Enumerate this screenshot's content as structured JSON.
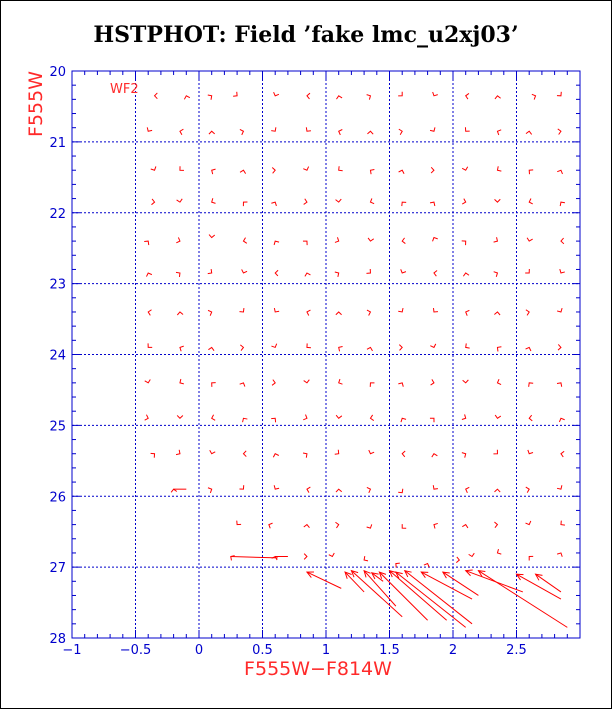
{
  "title": "HSTPHOT: Field ’fake lmc_u2xj03’",
  "colors": {
    "axis": "#0000cc",
    "grid": "#0000cc",
    "marks": "#ff0000",
    "labels": "#ff2a2a"
  },
  "chart_data": {
    "type": "scatter",
    "title": "HSTPHOT: Field ’fake lmc_u2xj03’",
    "xlabel": "F555W−F814W",
    "ylabel": "F555W",
    "annotation": "WF2",
    "xlim": [
      -1,
      3
    ],
    "ylim": [
      28,
      20
    ],
    "y_inverted": true,
    "grid": true,
    "x_ticks": [
      -1,
      -0.5,
      0,
      0.5,
      1,
      1.5,
      2,
      2.5
    ],
    "x_tick_labels": [
      "−1",
      "−0.5",
      "0",
      "0.5",
      "1",
      "1.5",
      "2",
      "2.5"
    ],
    "y_ticks": [
      20,
      21,
      22,
      23,
      24,
      25,
      26,
      27,
      28
    ],
    "y_tick_labels": [
      "20",
      "21",
      "22",
      "23",
      "24",
      "25",
      "26",
      "27",
      "28"
    ],
    "marker_note": "each input star's recovered offset shown as a short red vector; long vectors at the faint end",
    "points": [
      [
        -0.35,
        20.35
      ],
      [
        -0.1,
        20.35
      ],
      [
        0.1,
        20.35
      ],
      [
        0.3,
        20.35
      ],
      [
        0.6,
        20.35
      ],
      [
        0.85,
        20.35
      ],
      [
        1.1,
        20.35
      ],
      [
        1.35,
        20.35
      ],
      [
        1.6,
        20.35
      ],
      [
        1.85,
        20.35
      ],
      [
        2.1,
        20.35
      ],
      [
        2.35,
        20.35
      ],
      [
        2.65,
        20.35
      ],
      [
        2.85,
        20.35
      ],
      [
        -0.4,
        20.85
      ],
      [
        -0.15,
        20.85
      ],
      [
        0.1,
        20.85
      ],
      [
        0.35,
        20.85
      ],
      [
        0.6,
        20.85
      ],
      [
        0.85,
        20.85
      ],
      [
        1.1,
        20.85
      ],
      [
        1.35,
        20.85
      ],
      [
        1.6,
        20.85
      ],
      [
        1.85,
        20.85
      ],
      [
        2.1,
        20.85
      ],
      [
        2.35,
        20.85
      ],
      [
        2.6,
        20.85
      ],
      [
        2.85,
        20.85
      ],
      [
        -0.35,
        21.4
      ],
      [
        -0.15,
        21.4
      ],
      [
        0.1,
        21.4
      ],
      [
        0.35,
        21.4
      ],
      [
        0.6,
        21.4
      ],
      [
        0.85,
        21.4
      ],
      [
        1.1,
        21.4
      ],
      [
        1.35,
        21.4
      ],
      [
        1.6,
        21.4
      ],
      [
        1.85,
        21.4
      ],
      [
        2.1,
        21.4
      ],
      [
        2.35,
        21.4
      ],
      [
        2.6,
        21.4
      ],
      [
        2.85,
        21.4
      ],
      [
        -0.35,
        21.85
      ],
      [
        -0.15,
        21.85
      ],
      [
        0.1,
        21.85
      ],
      [
        0.35,
        21.85
      ],
      [
        0.6,
        21.85
      ],
      [
        0.85,
        21.85
      ],
      [
        1.1,
        21.85
      ],
      [
        1.35,
        21.85
      ],
      [
        1.6,
        21.85
      ],
      [
        1.85,
        21.85
      ],
      [
        2.1,
        21.85
      ],
      [
        2.35,
        21.85
      ],
      [
        2.6,
        21.85
      ],
      [
        2.85,
        21.85
      ],
      [
        -0.4,
        22.4
      ],
      [
        -0.15,
        22.4
      ],
      [
        0.1,
        22.35
      ],
      [
        0.35,
        22.4
      ],
      [
        0.6,
        22.4
      ],
      [
        0.85,
        22.4
      ],
      [
        1.1,
        22.4
      ],
      [
        1.35,
        22.4
      ],
      [
        1.6,
        22.4
      ],
      [
        1.85,
        22.35
      ],
      [
        2.1,
        22.4
      ],
      [
        2.35,
        22.4
      ],
      [
        2.6,
        22.4
      ],
      [
        2.85,
        22.4
      ],
      [
        -0.4,
        22.85
      ],
      [
        -0.15,
        22.85
      ],
      [
        0.1,
        22.85
      ],
      [
        0.35,
        22.85
      ],
      [
        0.6,
        22.85
      ],
      [
        0.85,
        22.85
      ],
      [
        1.1,
        22.85
      ],
      [
        1.35,
        22.85
      ],
      [
        1.6,
        22.85
      ],
      [
        1.85,
        22.85
      ],
      [
        2.1,
        22.85
      ],
      [
        2.35,
        22.85
      ],
      [
        2.6,
        22.85
      ],
      [
        2.85,
        22.85
      ],
      [
        -0.4,
        23.4
      ],
      [
        -0.15,
        23.4
      ],
      [
        0.1,
        23.4
      ],
      [
        0.35,
        23.4
      ],
      [
        0.6,
        23.4
      ],
      [
        0.85,
        23.4
      ],
      [
        1.1,
        23.4
      ],
      [
        1.35,
        23.4
      ],
      [
        1.6,
        23.4
      ],
      [
        1.85,
        23.4
      ],
      [
        2.1,
        23.4
      ],
      [
        2.35,
        23.4
      ],
      [
        2.6,
        23.4
      ],
      [
        2.85,
        23.4
      ],
      [
        -0.4,
        23.9
      ],
      [
        -0.15,
        23.9
      ],
      [
        0.1,
        23.9
      ],
      [
        0.35,
        23.9
      ],
      [
        0.6,
        23.9
      ],
      [
        0.85,
        23.9
      ],
      [
        1.1,
        23.9
      ],
      [
        1.35,
        23.9
      ],
      [
        1.6,
        23.9
      ],
      [
        1.85,
        23.9
      ],
      [
        2.1,
        23.9
      ],
      [
        2.35,
        23.9
      ],
      [
        2.6,
        23.9
      ],
      [
        2.85,
        23.9
      ],
      [
        -0.4,
        24.4
      ],
      [
        -0.15,
        24.4
      ],
      [
        0.1,
        24.4
      ],
      [
        0.35,
        24.4
      ],
      [
        0.6,
        24.4
      ],
      [
        0.85,
        24.4
      ],
      [
        1.1,
        24.4
      ],
      [
        1.35,
        24.4
      ],
      [
        1.6,
        24.4
      ],
      [
        1.85,
        24.4
      ],
      [
        2.1,
        24.4
      ],
      [
        2.35,
        24.4
      ],
      [
        2.6,
        24.4
      ],
      [
        2.85,
        24.4
      ],
      [
        -0.4,
        24.9
      ],
      [
        -0.15,
        24.9
      ],
      [
        0.1,
        24.9
      ],
      [
        0.35,
        24.9
      ],
      [
        0.6,
        24.9
      ],
      [
        0.85,
        24.9
      ],
      [
        1.1,
        24.9
      ],
      [
        1.35,
        24.9
      ],
      [
        1.6,
        24.9
      ],
      [
        1.85,
        24.9
      ],
      [
        2.1,
        24.9
      ],
      [
        2.35,
        24.9
      ],
      [
        2.6,
        24.9
      ],
      [
        2.85,
        24.9
      ],
      [
        -0.35,
        25.4
      ],
      [
        -0.15,
        25.4
      ],
      [
        0.1,
        25.4
      ],
      [
        0.35,
        25.4
      ],
      [
        0.6,
        25.4
      ],
      [
        0.85,
        25.4
      ],
      [
        1.1,
        25.4
      ],
      [
        1.35,
        25.4
      ],
      [
        1.6,
        25.4
      ],
      [
        1.85,
        25.4
      ],
      [
        2.1,
        25.4
      ],
      [
        2.35,
        25.4
      ],
      [
        2.6,
        25.4
      ],
      [
        2.85,
        25.4
      ],
      [
        -0.2,
        25.9
      ],
      [
        0.1,
        25.9
      ],
      [
        0.35,
        25.9
      ],
      [
        0.6,
        25.9
      ],
      [
        0.85,
        25.9
      ],
      [
        1.1,
        25.9
      ],
      [
        1.35,
        25.9
      ],
      [
        1.6,
        25.95
      ],
      [
        1.85,
        25.9
      ],
      [
        2.1,
        25.9
      ],
      [
        2.35,
        25.9
      ],
      [
        2.6,
        25.9
      ],
      [
        2.85,
        25.9
      ],
      [
        0.3,
        26.4
      ],
      [
        0.55,
        26.4
      ],
      [
        0.85,
        26.4
      ],
      [
        1.1,
        26.4
      ],
      [
        1.35,
        26.45
      ],
      [
        1.6,
        26.45
      ],
      [
        1.85,
        26.4
      ],
      [
        2.1,
        26.4
      ],
      [
        2.35,
        26.4
      ],
      [
        2.6,
        26.4
      ],
      [
        2.85,
        26.4
      ],
      [
        0.25,
        26.85
      ],
      [
        0.6,
        26.85
      ],
      [
        0.85,
        26.85
      ],
      [
        1.05,
        26.85
      ],
      [
        1.3,
        26.9
      ],
      [
        1.55,
        26.95
      ],
      [
        1.8,
        26.95
      ],
      [
        2.05,
        26.9
      ],
      [
        2.15,
        26.85
      ],
      [
        2.35,
        26.8
      ],
      [
        2.6,
        26.85
      ],
      [
        2.85,
        26.8
      ]
    ]
  }
}
